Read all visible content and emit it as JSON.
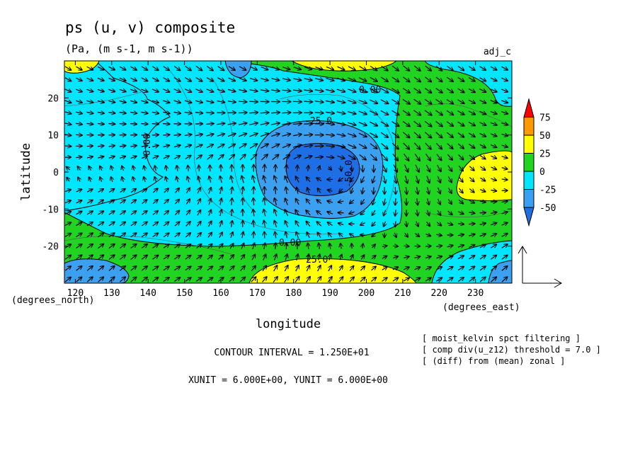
{
  "chart_data": {
    "type": "heatmap",
    "title": "ps (u, v) composite",
    "subtitle": "(Pa, (m s-1, m s-1))",
    "label_right": "adj_c",
    "xlabel": "longitude",
    "ylabel": "latitude",
    "x_unit_label": "(degrees_east)",
    "y_unit_label": "(degrees_north)",
    "xlim": [
      117,
      240
    ],
    "ylim": [
      -30,
      30
    ],
    "x_ticks": [
      120,
      130,
      140,
      150,
      160,
      170,
      180,
      190,
      200,
      210,
      220,
      230
    ],
    "y_ticks": [
      -20,
      -10,
      0,
      10,
      20
    ],
    "contour_interval_text": "CONTOUR INTERVAL = 1.250E+01",
    "unit_text": "XUNIT = 6.000E+00, YUNIT = 6.000E+00",
    "notes": [
      "[ moist_kelvin spct filtering ]",
      "[ comp div(u_z12) threshold = 7.0 ]",
      "[ (diff) from (mean) zonal ]"
    ],
    "colorbar": {
      "levels": [
        -50,
        -25,
        0,
        25,
        50,
        75
      ],
      "level_labels": [
        "-50",
        "-25",
        "0",
        "25",
        "50",
        "75"
      ],
      "colors": [
        "#1e6fe6",
        "#3ca0f0",
        "#00e6ff",
        "#21d421",
        "#ffff00",
        "#ff9900",
        "#ff0000"
      ]
    },
    "filled_regions": [
      {
        "level": "0 to 25",
        "desc": "background",
        "color": "#21d421"
      },
      {
        "level": "-25 to 0",
        "desc": "central region",
        "color": "#00e6ff"
      },
      {
        "level": "-50 to -25",
        "desc": "around equator 185E",
        "color": "#3ca0f0"
      },
      {
        "level": "< -50",
        "desc": "core near 0N 188E",
        "color": "#1e6fe6"
      },
      {
        "level": "25 to 50",
        "desc": "south 195E, north 198E, west edge, east 230E",
        "color": "#ffff00"
      }
    ],
    "contour_labels": [
      "0.00",
      "-25.0",
      "0.00",
      "-50.0",
      "0.00",
      "25.0"
    ],
    "vector_reference": {
      "xunit": 6.0,
      "yunit": 6.0
    }
  }
}
